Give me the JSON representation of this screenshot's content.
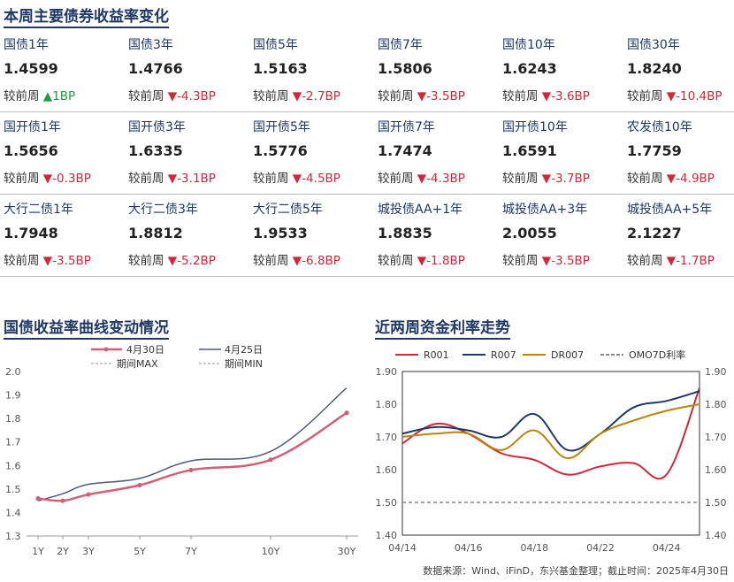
{
  "section1_title": "本周主要债券收益率变化",
  "change_prefix": "较前周",
  "rows": [
    [
      {
        "name": "国债1年",
        "value": "1.4599",
        "dir": "up",
        "change": "1BP"
      },
      {
        "name": "国债3年",
        "value": "1.4766",
        "dir": "down",
        "change": "-4.3BP"
      },
      {
        "name": "国债5年",
        "value": "1.5163",
        "dir": "down",
        "change": "-2.7BP"
      },
      {
        "name": "国债7年",
        "value": "1.5806",
        "dir": "down",
        "change": "-3.5BP"
      },
      {
        "name": "国债10年",
        "value": "1.6243",
        "dir": "down",
        "change": "-3.6BP"
      },
      {
        "name": "国债30年",
        "value": "1.8240",
        "dir": "down",
        "change": "-10.4BP"
      }
    ],
    [
      {
        "name": "国开债1年",
        "value": "1.5656",
        "dir": "down",
        "change": "-0.3BP"
      },
      {
        "name": "国开债3年",
        "value": "1.6335",
        "dir": "down",
        "change": "-3.1BP"
      },
      {
        "name": "国开债5年",
        "value": "1.5776",
        "dir": "down",
        "change": "-4.5BP"
      },
      {
        "name": "国开债7年",
        "value": "1.7474",
        "dir": "down",
        "change": "-4.3BP"
      },
      {
        "name": "国开债10年",
        "value": "1.6591",
        "dir": "down",
        "change": "-3.7BP"
      },
      {
        "name": "农发债10年",
        "value": "1.7759",
        "dir": "down",
        "change": "-4.9BP"
      }
    ],
    [
      {
        "name": "大行二债1年",
        "value": "1.7948",
        "dir": "down",
        "change": "-3.5BP"
      },
      {
        "name": "大行二债3年",
        "value": "1.8812",
        "dir": "down",
        "change": "-5.2BP"
      },
      {
        "name": "大行二债5年",
        "value": "1.9533",
        "dir": "down",
        "change": "-6.8BP"
      },
      {
        "name": "城投债AA+1年",
        "value": "1.8835",
        "dir": "down",
        "change": "-1.8BP"
      },
      {
        "name": "城投债AA+3年",
        "value": "2.0055",
        "dir": "down",
        "change": "-3.5BP"
      },
      {
        "name": "城投债AA+5年",
        "value": "2.1227",
        "dir": "down",
        "change": "-1.7BP"
      }
    ]
  ],
  "section2_title": "国债收益率曲线变动情况",
  "section3_title": "近两周资金利率走势",
  "source_note": "数据来源：Wind、iFinD，东兴基金整理；截止时间：2025年4月30日",
  "colors": {
    "red": "#d0273a",
    "navy": "#1f3864",
    "green": "#1f9d3c",
    "gold": "#b8860b",
    "gray": "#888888"
  },
  "chart_data": [
    {
      "type": "line",
      "x": [
        "1Y",
        "2Y",
        "3Y",
        "5Y",
        "7Y",
        "10Y",
        "30Y"
      ],
      "x_years": [
        1,
        2,
        3,
        5,
        7,
        10,
        30
      ],
      "ylim": [
        1.3,
        2.0
      ],
      "yticks": [
        "1.3",
        "1.4",
        "1.5",
        "1.6",
        "1.7",
        "1.8",
        "1.9",
        "2.0"
      ],
      "legend": [
        "4月30日",
        "4月25日",
        "期间MAX",
        "期间MIN"
      ],
      "series": [
        {
          "name": "4月30日",
          "color": "#d0607a",
          "values": [
            1.4599,
            1.45,
            1.4766,
            1.5163,
            1.5806,
            1.6243,
            1.824
          ],
          "markers": true
        },
        {
          "name": "4月25日",
          "color": "#4a5d73",
          "values": [
            1.45,
            1.48,
            1.52,
            1.545,
            1.62,
            1.66,
            1.93
          ],
          "markers": false
        }
      ]
    },
    {
      "type": "line",
      "x": [
        "04/14",
        "04/15",
        "04/16",
        "04/17",
        "04/18",
        "04/21",
        "04/22",
        "04/23",
        "04/24",
        "04/25"
      ],
      "xticks": [
        "04/14",
        "04/16",
        "04/18",
        "04/22",
        "04/24"
      ],
      "ylim": [
        1.4,
        1.9
      ],
      "yticks": [
        "1.40",
        "1.50",
        "1.60",
        "1.70",
        "1.80",
        "1.90"
      ],
      "legend": [
        "R001",
        "R007",
        "DR007",
        "OMO7D利率"
      ],
      "series": [
        {
          "name": "R001",
          "color": "#d0273a",
          "values": [
            1.68,
            1.74,
            1.71,
            1.65,
            1.63,
            1.585,
            1.61,
            1.62,
            1.585,
            1.85
          ]
        },
        {
          "name": "R007",
          "color": "#1f3864",
          "values": [
            1.71,
            1.73,
            1.72,
            1.7,
            1.77,
            1.66,
            1.71,
            1.79,
            1.81,
            1.84
          ]
        },
        {
          "name": "DR007",
          "color": "#b8860b",
          "values": [
            1.7,
            1.71,
            1.71,
            1.66,
            1.72,
            1.635,
            1.71,
            1.75,
            1.78,
            1.8
          ]
        },
        {
          "name": "OMO7D利率",
          "color": "#888888",
          "values": [
            1.5,
            1.5,
            1.5,
            1.5,
            1.5,
            1.5,
            1.5,
            1.5,
            1.5,
            1.5
          ],
          "dashed": true
        }
      ]
    }
  ]
}
